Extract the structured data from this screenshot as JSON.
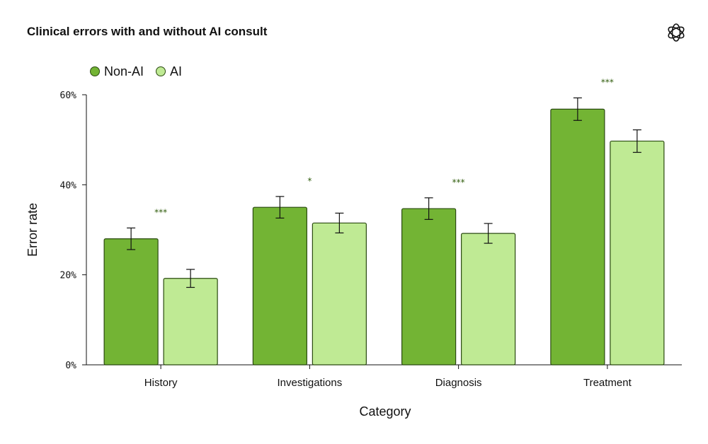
{
  "title": "Clinical errors with and without AI consult",
  "logo_icon": "openai-logo-icon",
  "colors": {
    "non_ai": "#73b434",
    "ai": "#bfea94",
    "edge": "#2a4a10",
    "significance": "#2f5c0b"
  },
  "chart_data": {
    "type": "bar",
    "title": "Clinical errors with and without AI consult",
    "xlabel": "Category",
    "ylabel": "Error rate",
    "categories": [
      "History",
      "Investigations",
      "Diagnosis",
      "Treatment"
    ],
    "ylim": [
      0,
      0.6
    ],
    "yticks": [
      0,
      0.2,
      0.4,
      0.6
    ],
    "ytick_labels": [
      "0%",
      "20%",
      "40%",
      "60%"
    ],
    "legend_position": "top-left",
    "grid": false,
    "series": [
      {
        "name": "Non-AI",
        "values": [
          0.28,
          0.35,
          0.347,
          0.568
        ],
        "errors": [
          0.024,
          0.024,
          0.024,
          0.025
        ]
      },
      {
        "name": "AI",
        "values": [
          0.192,
          0.315,
          0.292,
          0.497
        ],
        "errors": [
          0.02,
          0.022,
          0.022,
          0.025
        ]
      }
    ],
    "significance": [
      "***",
      "*",
      "***",
      "***"
    ]
  }
}
